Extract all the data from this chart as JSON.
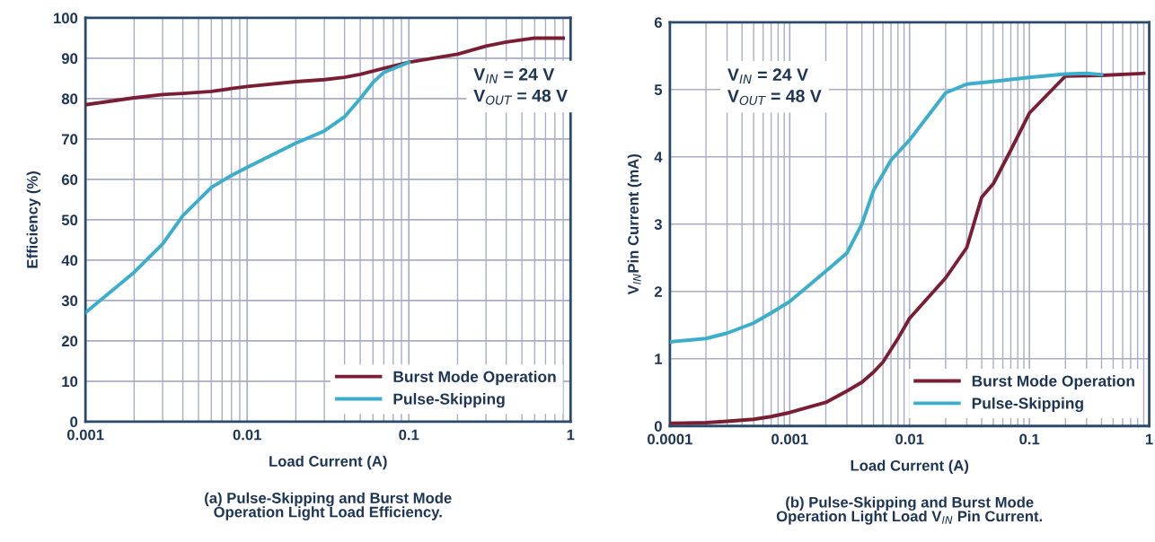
{
  "chart_data": [
    {
      "type": "line",
      "title": "(a) Pulse-Skipping and Burst Mode\nOperation Light Load Efficiency.",
      "xlabel": "Load Current (A)",
      "ylabel": "Efficiency (%)",
      "log": "x",
      "grid": true,
      "legend": "bottom right",
      "xlim": [
        0.001,
        1
      ],
      "xticks": [
        0.001,
        0.01,
        0.1,
        1
      ],
      "ylim": [
        0,
        100
      ],
      "yticks": [
        0,
        10,
        20,
        30,
        40,
        50,
        60,
        70,
        80,
        90,
        100
      ],
      "annotations": [
        "V$_{IN}$ = 24 V\nV$_{OUT}$ = 48 V"
      ],
      "series": [
        {
          "name": "Burst Mode Operation",
          "color": "#7a1f33",
          "x": [
            0.001,
            0.002,
            0.003,
            0.004,
            0.006,
            0.008,
            0.01,
            0.02,
            0.03,
            0.04,
            0.05,
            0.07,
            0.1,
            0.2,
            0.3,
            0.4,
            0.6,
            0.9
          ],
          "values": [
            78.5,
            80.2,
            81,
            81.3,
            81.8,
            82.5,
            83,
            84.2,
            84.7,
            85.3,
            86,
            87.5,
            89,
            91,
            93,
            94,
            95,
            95
          ]
        },
        {
          "name": "Pulse-Skipping",
          "color": "#3aaecb",
          "x": [
            0.001,
            0.002,
            0.003,
            0.004,
            0.006,
            0.008,
            0.01,
            0.02,
            0.03,
            0.04,
            0.05,
            0.06,
            0.07,
            0.1
          ],
          "values": [
            27,
            37,
            44,
            51,
            58,
            61,
            63,
            69,
            72,
            75.5,
            80,
            84,
            86.5,
            89
          ]
        }
      ]
    },
    {
      "type": "line",
      "title": "(b) Pulse-Skipping and Burst Mode\nOperation Light Load V$_{IN}$ Pin Current.",
      "xlabel": "Load Current (A)",
      "ylabel": "V$_{IN}$Pin Current (mA)",
      "log": "x",
      "grid": true,
      "legend": "bottom right",
      "xlim": [
        0.0001,
        1
      ],
      "xticks": [
        0.0001,
        0.001,
        0.01,
        0.1,
        1
      ],
      "ylim": [
        0,
        6
      ],
      "yticks": [
        0,
        1,
        2,
        3,
        4,
        5,
        6
      ],
      "annotations": [
        "V$_{IN}$ = 24 V\nV$_{OUT}$ = 48 V"
      ],
      "series": [
        {
          "name": "Burst Mode Operation",
          "color": "#7a1f33",
          "x": [
            0.0001,
            0.0002,
            0.0003,
            0.0005,
            0.0007,
            0.001,
            0.002,
            0.003,
            0.004,
            0.005,
            0.006,
            0.008,
            0.01,
            0.02,
            0.03,
            0.04,
            0.05,
            0.07,
            0.1,
            0.2,
            0.4,
            0.9
          ],
          "values": [
            0.04,
            0.05,
            0.07,
            0.1,
            0.14,
            0.2,
            0.35,
            0.52,
            0.65,
            0.8,
            0.95,
            1.3,
            1.6,
            2.2,
            2.65,
            3.4,
            3.6,
            4.1,
            4.65,
            5.2,
            5.21,
            5.24
          ]
        },
        {
          "name": "Pulse-Skipping",
          "color": "#3aaecb",
          "x": [
            0.0001,
            0.0002,
            0.0003,
            0.0005,
            0.0007,
            0.001,
            0.002,
            0.003,
            0.004,
            0.005,
            0.007,
            0.01,
            0.02,
            0.03,
            0.05,
            0.1,
            0.2,
            0.3,
            0.4
          ],
          "values": [
            1.25,
            1.3,
            1.38,
            1.53,
            1.68,
            1.85,
            2.3,
            2.57,
            3.0,
            3.5,
            3.95,
            4.25,
            4.95,
            5.08,
            5.12,
            5.18,
            5.23,
            5.24,
            5.22
          ]
        }
      ]
    }
  ]
}
